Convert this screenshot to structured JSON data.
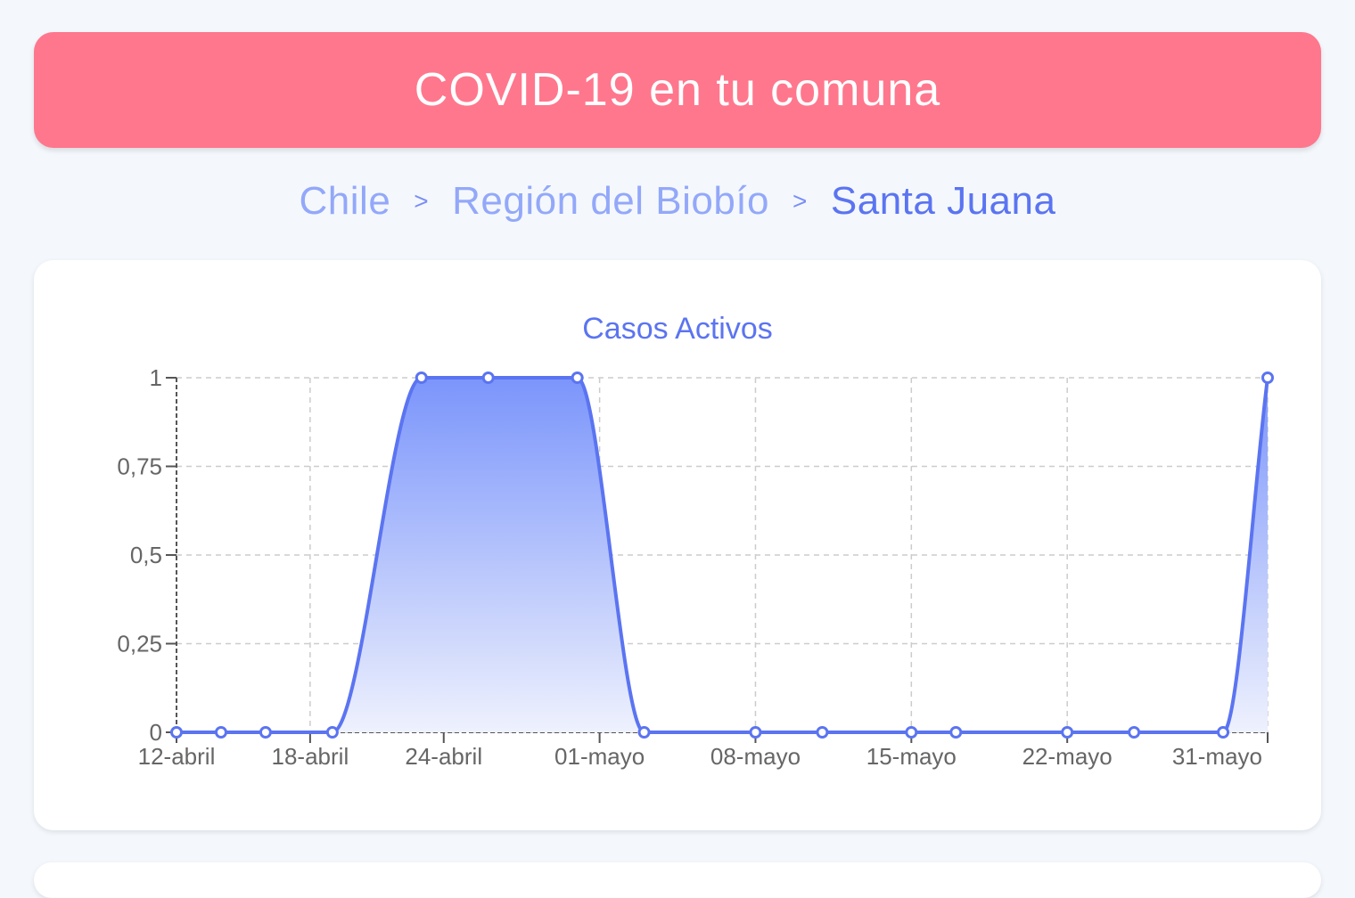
{
  "header": {
    "title": "COVID-19 en tu comuna"
  },
  "breadcrumb": {
    "items": [
      "Chile",
      "Región del Biobío",
      "Santa Juana"
    ],
    "separator": ">"
  },
  "colors": {
    "accent": "#5b74f1",
    "header_bg": "#ff778d",
    "breadcrumb_muted": "#93a8f9"
  },
  "chart_data": {
    "type": "area",
    "title": "Casos Activos",
    "xlabel": "",
    "ylabel": "",
    "x": [
      "12-abril",
      "14-abril",
      "16-abril",
      "19-abril",
      "23-abril",
      "26-abril",
      "30-abril",
      "03-mayo",
      "08-mayo",
      "11-mayo",
      "15-mayo",
      "17-mayo",
      "22-mayo",
      "25-mayo",
      "29-mayo",
      "31-mayo"
    ],
    "values": [
      0,
      0,
      0,
      0,
      1,
      1,
      1,
      0,
      0,
      0,
      0,
      0,
      0,
      0,
      0,
      1
    ],
    "x_tick_labels": [
      "12-abril",
      "18-abril",
      "24-abril",
      "01-mayo",
      "08-mayo",
      "15-mayo",
      "22-mayo",
      "31-mayo"
    ],
    "y_ticks": [
      0,
      0.25,
      0.5,
      0.75,
      1
    ],
    "y_tick_labels": [
      "0",
      "0,25",
      "0,5",
      "0,75",
      "1"
    ],
    "xlim": [
      "12-abril",
      "31-mayo"
    ],
    "ylim": [
      0,
      1
    ],
    "grid": true,
    "line_color": "#5b74f1",
    "fill_gradient": [
      "#7b95fb",
      "#eef1fd"
    ]
  }
}
